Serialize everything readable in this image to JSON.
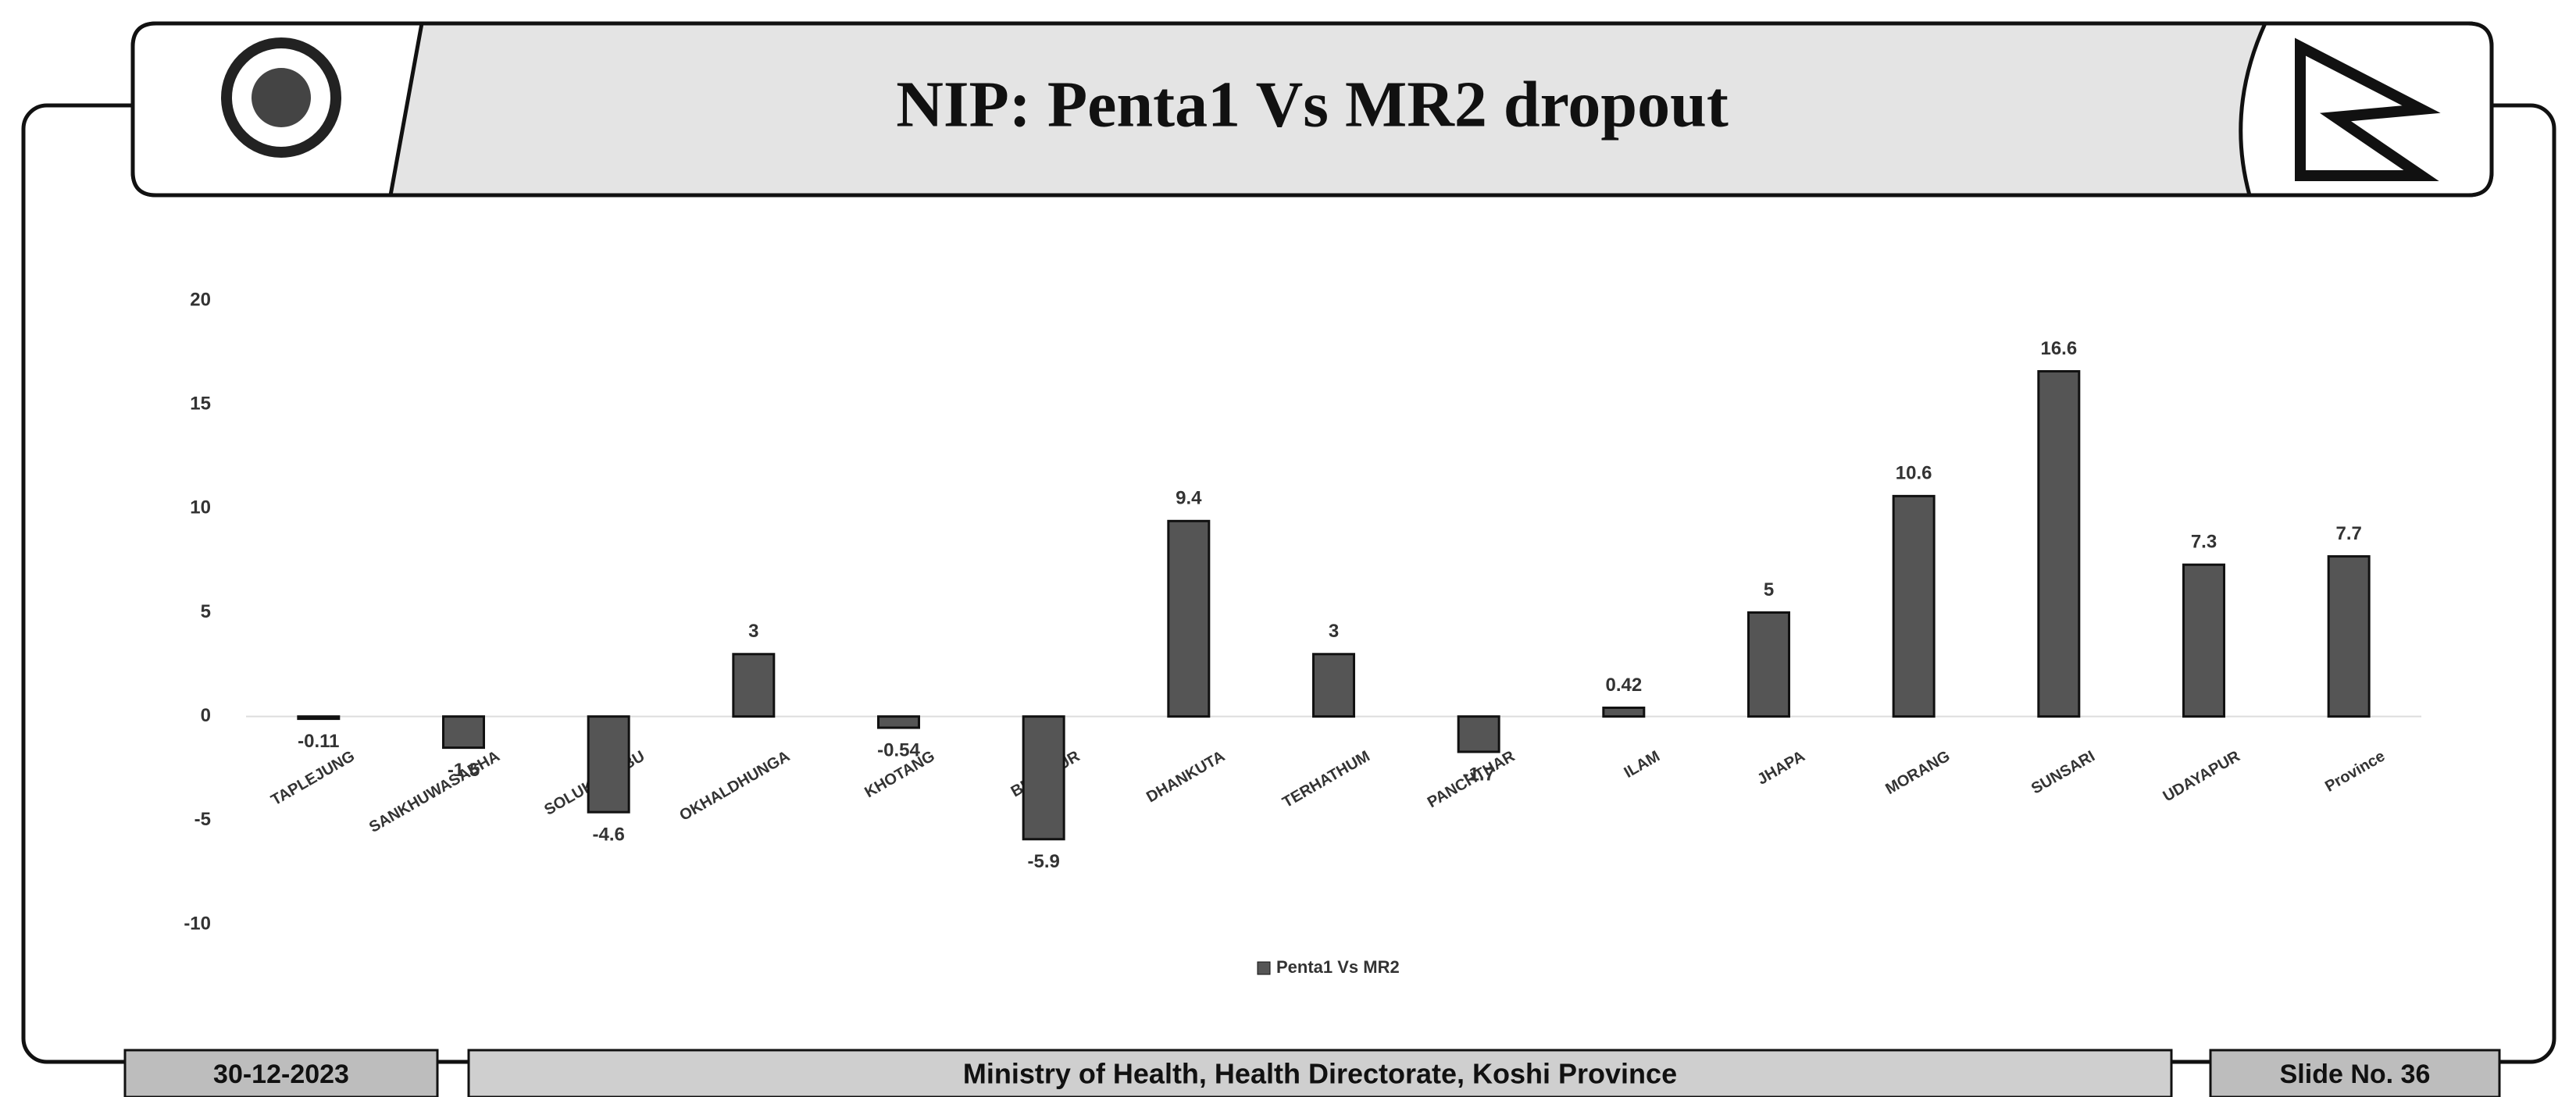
{
  "header": {
    "title": "NIP: Penta1 Vs MR2 dropout"
  },
  "footer": {
    "date": "30-12-2023",
    "organization": "Ministry of Health, Health Directorate, Koshi Province",
    "slide": "Slide No. 36"
  },
  "chart_data": {
    "type": "bar",
    "categories": [
      "TAPLEJUNG",
      "SANKHUWASABHA",
      "SOLUKHUMBU",
      "OKHALDHUNGA",
      "KHOTANG",
      "BHOJPUR",
      "DHANKUTA",
      "TERHATHUM",
      "PANCHTHAR",
      "ILAM",
      "JHAPA",
      "MORANG",
      "SUNSARI",
      "UDAYAPUR",
      "Province"
    ],
    "series": [
      {
        "name": "Penta1 Vs MR2",
        "color": "#555555",
        "values": [
          -0.11,
          -1.5,
          -4.6,
          3,
          -0.54,
          -5.9,
          9.4,
          3,
          -1.7,
          0.42,
          5,
          10.6,
          16.6,
          7.3,
          7.7
        ]
      }
    ],
    "ylim": [
      -10,
      20
    ],
    "yticks": [
      -10,
      -5,
      0,
      5,
      10,
      15,
      20
    ],
    "grid": false,
    "legend": "bottom"
  }
}
